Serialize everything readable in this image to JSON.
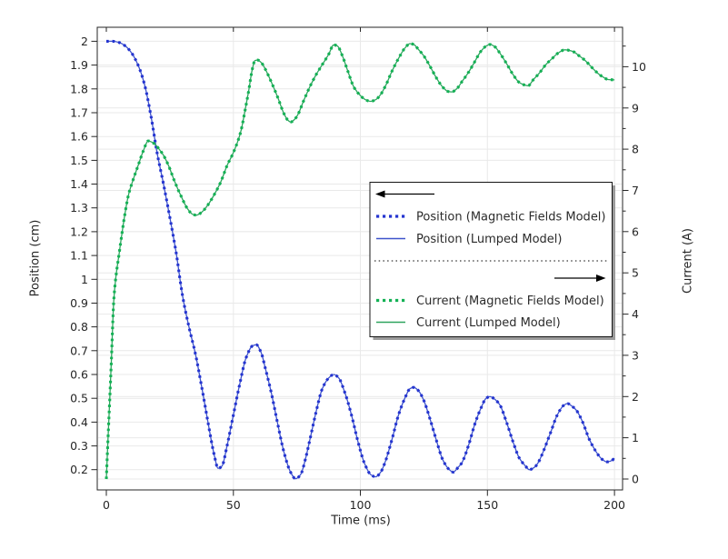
{
  "colors": {
    "background": "#ffffff",
    "grid": "#e9e9e9",
    "axis": "#262626",
    "text": "#262626",
    "position_solid": "#3e53cb",
    "position_dotted": "#2434d0",
    "current_solid": "#2ea45e",
    "current_dotted": "#14b155",
    "legend_border": "#141414",
    "legend_shadow": "#9b9b9b",
    "arrow": "#000000"
  },
  "chart_data": {
    "type": "line",
    "title": "",
    "x_axis": {
      "label": "Time (ms)",
      "range": [
        -3.58,
        203.2
      ],
      "ticks": [
        0,
        50,
        100,
        150,
        200
      ],
      "tick_labels": [
        "0",
        "50",
        "100",
        "150",
        "200"
      ]
    },
    "y_left": {
      "label": "Position (cm)",
      "range": [
        0.115,
        2.059
      ],
      "ticks": [
        0.2,
        0.3,
        0.4,
        0.5,
        0.6,
        0.7,
        0.8,
        0.9,
        1,
        1.1,
        1.2,
        1.3,
        1.4,
        1.5,
        1.6,
        1.7,
        1.8,
        1.9,
        2
      ],
      "tick_labels": [
        "0.2",
        "0.3",
        "0.4",
        "0.5",
        "0.6",
        "0.7",
        "0.8",
        "0.9",
        "1",
        "1.1",
        "1.2",
        "1.3",
        "1.4",
        "1.5",
        "1.6",
        "1.7",
        "1.8",
        "1.9",
        "2"
      ]
    },
    "y_right": {
      "label": "Current (A)",
      "range": [
        -0.265,
        10.957
      ],
      "ticks": [
        0,
        1,
        2,
        3,
        4,
        5,
        6,
        7,
        8,
        9,
        10
      ],
      "tick_labels": [
        "0",
        "1",
        "2",
        "3",
        "4",
        "5",
        "6",
        "7",
        "8",
        "9",
        "10"
      ],
      "minor_step": 0.5
    },
    "grid": true,
    "legend_position": "middle-right",
    "series": [
      {
        "id": "position",
        "axis": "left",
        "solid_label": "Position (Lumped Model)",
        "dotted_label": "Position (Magnetic Fields Model)",
        "solid_color": "position_solid",
        "dotted_color": "position_dotted",
        "points": [
          [
            0,
            2.0
          ],
          [
            2.5,
            2.0
          ],
          [
            5,
            1.995
          ],
          [
            7.5,
            1.98
          ],
          [
            10,
            1.95
          ],
          [
            12.5,
            1.9
          ],
          [
            15,
            1.82
          ],
          [
            17.5,
            1.69
          ],
          [
            20,
            1.53
          ],
          [
            22.5,
            1.4
          ],
          [
            25,
            1.26
          ],
          [
            27.5,
            1.11
          ],
          [
            30,
            0.93
          ],
          [
            32.5,
            0.8
          ],
          [
            35,
            0.69
          ],
          [
            37.5,
            0.55
          ],
          [
            40,
            0.4
          ],
          [
            42.5,
            0.26
          ],
          [
            44,
            0.206
          ],
          [
            45.5,
            0.215
          ],
          [
            47.5,
            0.3
          ],
          [
            50,
            0.43
          ],
          [
            52.5,
            0.56
          ],
          [
            55,
            0.67
          ],
          [
            57.5,
            0.72
          ],
          [
            59,
            0.725
          ],
          [
            61,
            0.69
          ],
          [
            62.5,
            0.63
          ],
          [
            65,
            0.52
          ],
          [
            67.5,
            0.39
          ],
          [
            70,
            0.27
          ],
          [
            72.5,
            0.19
          ],
          [
            74.5,
            0.162
          ],
          [
            76.5,
            0.18
          ],
          [
            78.5,
            0.25
          ],
          [
            80,
            0.32
          ],
          [
            82.5,
            0.44
          ],
          [
            85,
            0.54
          ],
          [
            87.5,
            0.585
          ],
          [
            89.5,
            0.6
          ],
          [
            91.5,
            0.585
          ],
          [
            94,
            0.52
          ],
          [
            96.5,
            0.43
          ],
          [
            99,
            0.32
          ],
          [
            101.5,
            0.23
          ],
          [
            104,
            0.18
          ],
          [
            106,
            0.17
          ],
          [
            108,
            0.19
          ],
          [
            110,
            0.24
          ],
          [
            112.5,
            0.33
          ],
          [
            115,
            0.43
          ],
          [
            117.5,
            0.5
          ],
          [
            119.5,
            0.54
          ],
          [
            121,
            0.546
          ],
          [
            123,
            0.53
          ],
          [
            125,
            0.49
          ],
          [
            127.5,
            0.41
          ],
          [
            130,
            0.32
          ],
          [
            132.5,
            0.24
          ],
          [
            135,
            0.2
          ],
          [
            136.5,
            0.19
          ],
          [
            138.5,
            0.21
          ],
          [
            140,
            0.23
          ],
          [
            142.5,
            0.3
          ],
          [
            145,
            0.39
          ],
          [
            147.5,
            0.46
          ],
          [
            149.5,
            0.5
          ],
          [
            151,
            0.507
          ],
          [
            153,
            0.495
          ],
          [
            155,
            0.47
          ],
          [
            157.5,
            0.4
          ],
          [
            160,
            0.32
          ],
          [
            162.5,
            0.25
          ],
          [
            165,
            0.215
          ],
          [
            166.5,
            0.2
          ],
          [
            168.5,
            0.21
          ],
          [
            170,
            0.23
          ],
          [
            172.5,
            0.29
          ],
          [
            175,
            0.36
          ],
          [
            177.5,
            0.43
          ],
          [
            180,
            0.47
          ],
          [
            181.5,
            0.478
          ],
          [
            183.5,
            0.465
          ],
          [
            185,
            0.45
          ],
          [
            187.5,
            0.4
          ],
          [
            190,
            0.33
          ],
          [
            192.5,
            0.28
          ],
          [
            195,
            0.245
          ],
          [
            197,
            0.233
          ],
          [
            198.5,
            0.236
          ],
          [
            200,
            0.248
          ]
        ]
      },
      {
        "id": "current",
        "axis": "right",
        "solid_label": "Current (Lumped Model)",
        "dotted_label": "Current (Magnetic Fields Model)",
        "solid_color": "current_solid",
        "dotted_color": "current_dotted",
        "points": [
          [
            0,
            0.0
          ],
          [
            0.6,
            0.9
          ],
          [
            1.25,
            1.8
          ],
          [
            2,
            2.9
          ],
          [
            2.9,
            4.3
          ],
          [
            3.75,
            4.9
          ],
          [
            5,
            5.45
          ],
          [
            6.25,
            6.0
          ],
          [
            7.5,
            6.5
          ],
          [
            8.75,
            6.9
          ],
          [
            10,
            7.16
          ],
          [
            12.5,
            7.6
          ],
          [
            14.5,
            7.95
          ],
          [
            16.5,
            8.2
          ],
          [
            18.5,
            8.15
          ],
          [
            20.8,
            8.0
          ],
          [
            22.5,
            7.85
          ],
          [
            24.5,
            7.6
          ],
          [
            27,
            7.2
          ],
          [
            29.5,
            6.85
          ],
          [
            32,
            6.55
          ],
          [
            34,
            6.42
          ],
          [
            35.5,
            6.4
          ],
          [
            37.5,
            6.47
          ],
          [
            40,
            6.65
          ],
          [
            42.5,
            6.9
          ],
          [
            45,
            7.2
          ],
          [
            47.5,
            7.6
          ],
          [
            49.5,
            7.85
          ],
          [
            51.5,
            8.15
          ],
          [
            53,
            8.45
          ],
          [
            54.5,
            8.9
          ],
          [
            56,
            9.4
          ],
          [
            57.5,
            9.95
          ],
          [
            58.5,
            10.15
          ],
          [
            59.5,
            10.16
          ],
          [
            61,
            10.1
          ],
          [
            62.5,
            9.95
          ],
          [
            65,
            9.62
          ],
          [
            67.5,
            9.25
          ],
          [
            70,
            8.85
          ],
          [
            71.5,
            8.7
          ],
          [
            72.6,
            8.66
          ],
          [
            74,
            8.72
          ],
          [
            75.5,
            8.85
          ],
          [
            77.5,
            9.15
          ],
          [
            80,
            9.5
          ],
          [
            82.5,
            9.8
          ],
          [
            85,
            10.05
          ],
          [
            87.5,
            10.3
          ],
          [
            89.5,
            10.53
          ],
          [
            91,
            10.5
          ],
          [
            93,
            10.25
          ],
          [
            95,
            9.9
          ],
          [
            97.5,
            9.5
          ],
          [
            100,
            9.3
          ],
          [
            102,
            9.2
          ],
          [
            104,
            9.16
          ],
          [
            106,
            9.2
          ],
          [
            108,
            9.33
          ],
          [
            110,
            9.55
          ],
          [
            112.5,
            9.9
          ],
          [
            115,
            10.2
          ],
          [
            117.5,
            10.45
          ],
          [
            119.5,
            10.56
          ],
          [
            121,
            10.54
          ],
          [
            122.7,
            10.43
          ],
          [
            125,
            10.26
          ],
          [
            127.5,
            10.0
          ],
          [
            130,
            9.72
          ],
          [
            132.5,
            9.5
          ],
          [
            134.5,
            9.4
          ],
          [
            136,
            9.39
          ],
          [
            138,
            9.47
          ],
          [
            140,
            9.64
          ],
          [
            142.5,
            9.86
          ],
          [
            145,
            10.12
          ],
          [
            147.5,
            10.38
          ],
          [
            149.5,
            10.5
          ],
          [
            151,
            10.54
          ],
          [
            153,
            10.48
          ],
          [
            155,
            10.32
          ],
          [
            157.5,
            10.08
          ],
          [
            160,
            9.82
          ],
          [
            162.5,
            9.62
          ],
          [
            164.5,
            9.56
          ],
          [
            166,
            9.54
          ],
          [
            168,
            9.68
          ],
          [
            170.5,
            9.85
          ],
          [
            173,
            10.05
          ],
          [
            175.5,
            10.2
          ],
          [
            178,
            10.34
          ],
          [
            180.5,
            10.41
          ],
          [
            182,
            10.4
          ],
          [
            184,
            10.36
          ],
          [
            186,
            10.27
          ],
          [
            188.5,
            10.15
          ],
          [
            191,
            9.99
          ],
          [
            193.5,
            9.84
          ],
          [
            195.5,
            9.75
          ],
          [
            197.5,
            9.69
          ],
          [
            200,
            9.68
          ]
        ]
      }
    ],
    "legend": {
      "rows": [
        {
          "type": "arrow-left"
        },
        {
          "type": "entry",
          "style": "dotted",
          "color": "position_dotted",
          "label": "Position (Magnetic Fields Model)"
        },
        {
          "type": "entry",
          "style": "solid",
          "color": "position_solid",
          "label": "Position (Lumped Model)"
        },
        {
          "type": "separator"
        },
        {
          "type": "arrow-right"
        },
        {
          "type": "entry",
          "style": "dotted",
          "color": "current_dotted",
          "label": "Current (Magnetic Fields Model)"
        },
        {
          "type": "entry",
          "style": "solid",
          "color": "current_solid",
          "label": "Current (Lumped Model)"
        }
      ]
    }
  }
}
